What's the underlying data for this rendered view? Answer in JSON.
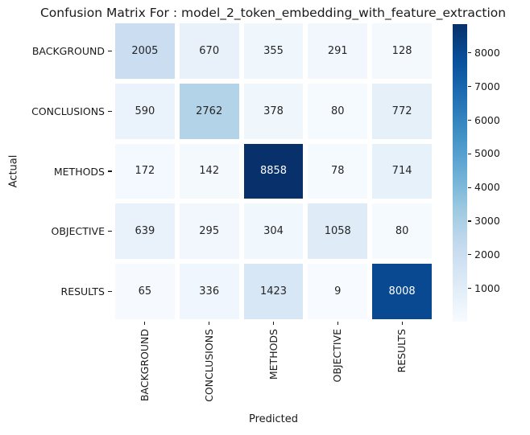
{
  "title": "Confusion Matrix For : model_2_token_embedding_with_feature_extraction",
  "chart_data": {
    "type": "heatmap",
    "title": "Confusion Matrix For : model_2_token_embedding_with_feature_extraction",
    "xlabel": "Predicted",
    "ylabel": "Actual",
    "x_categories": [
      "BACKGROUND",
      "CONCLUSIONS",
      "METHODS",
      "OBJECTIVE",
      "RESULTS"
    ],
    "y_categories": [
      "BACKGROUND",
      "CONCLUSIONS",
      "METHODS",
      "OBJECTIVE",
      "RESULTS"
    ],
    "rows": [
      [
        2005,
        670,
        355,
        291,
        128
      ],
      [
        590,
        2762,
        378,
        80,
        772
      ],
      [
        172,
        142,
        8858,
        78,
        714
      ],
      [
        639,
        295,
        304,
        1058,
        80
      ],
      [
        65,
        336,
        1423,
        9,
        8008
      ]
    ],
    "vmin": 9,
    "vmax": 8858,
    "colormap": "Blues",
    "colorbar_ticks": [
      1000,
      2000,
      3000,
      4000,
      5000,
      6000,
      7000,
      8000
    ],
    "legend_position": "right",
    "grid": false
  },
  "colors": {
    "colormap_stops": [
      "#f7fbff",
      "#deebf7",
      "#c6dbef",
      "#9ecae1",
      "#6baed6",
      "#4292c6",
      "#2171b5",
      "#08519c",
      "#08306b"
    ],
    "cell_text_dark": "#262626",
    "cell_text_light": "#ffffff",
    "axis_text": "#1a1a1a",
    "background": "#ffffff"
  }
}
